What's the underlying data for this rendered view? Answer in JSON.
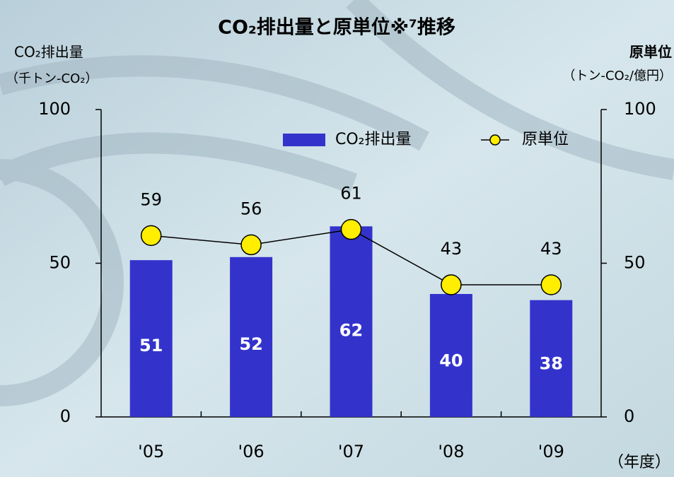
{
  "chart_data": {
    "type": "bar-line",
    "title": "CO₂排出量と原単位※⁷推移",
    "y_label": [
      "CO₂排出量",
      "（千トン‐CO₂）"
    ],
    "y2_label": [
      "原単位",
      "（トン‐CO₂/億円）"
    ],
    "x_unit": "（年度）",
    "categories": [
      "'05",
      "'06",
      "'07",
      "'08",
      "'09"
    ],
    "series": [
      {
        "name": "CO₂排出量",
        "type": "bar",
        "color": "#3333cc",
        "values": [
          51,
          52,
          62,
          40,
          38
        ]
      },
      {
        "name": "原単位",
        "type": "line",
        "axis": "y2",
        "color": "#ffee00",
        "values": [
          59,
          56,
          61,
          43,
          43
        ]
      }
    ],
    "ylim": [
      0,
      100
    ],
    "yticks": [
      0,
      50,
      100
    ],
    "y2lim": [
      0,
      100
    ],
    "y2ticks": [
      0,
      50,
      100
    ],
    "legend": "top"
  }
}
